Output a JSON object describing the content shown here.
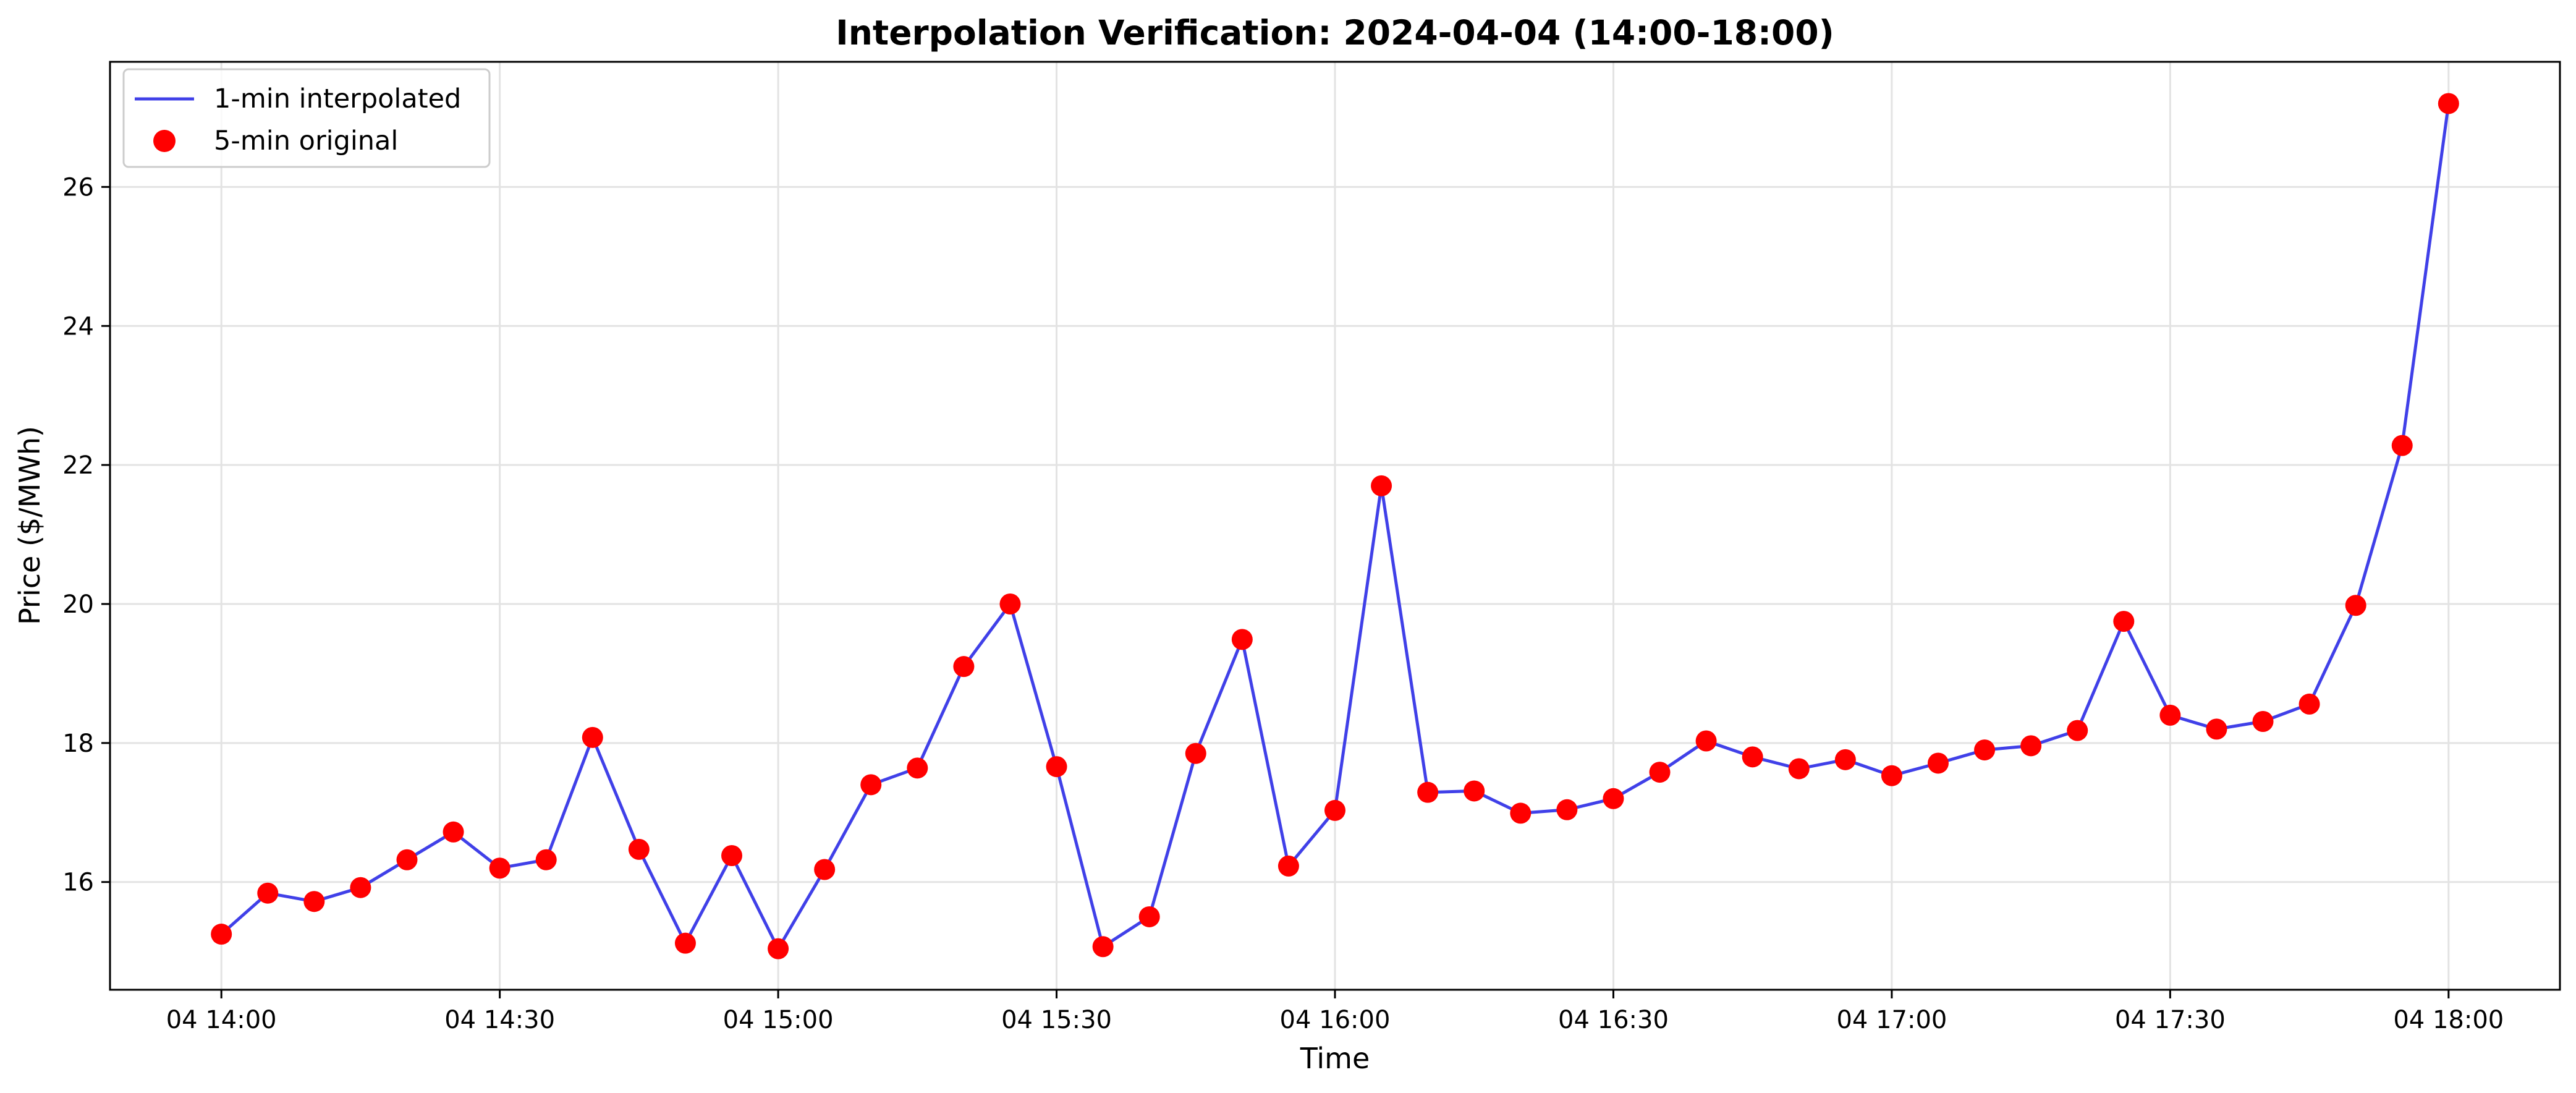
{
  "chart_data": {
    "type": "line",
    "title": "Interpolation Verification: 2024-04-04 (14:00-18:00)",
    "xlabel": "Time",
    "ylabel": "Price ($/MWh)",
    "x_ticks": [
      "04 14:00",
      "04 14:30",
      "04 15:00",
      "04 15:30",
      "04 16:00",
      "04 16:30",
      "04 17:00",
      "04 17:30",
      "04 18:00"
    ],
    "y_ticks": [
      "16",
      "18",
      "20",
      "22",
      "24",
      "26"
    ],
    "xlim": [
      "2024-04-04 13:48",
      "2024-04-04 18:12"
    ],
    "ylim": [
      14.45,
      27.8
    ],
    "grid": true,
    "legend_position": "top-left",
    "x": [
      "14:00",
      "14:05",
      "14:10",
      "14:15",
      "14:20",
      "14:25",
      "14:30",
      "14:35",
      "14:40",
      "14:45",
      "14:50",
      "14:55",
      "15:00",
      "15:05",
      "15:10",
      "15:15",
      "15:20",
      "15:25",
      "15:30",
      "15:35",
      "15:40",
      "15:45",
      "15:50",
      "15:55",
      "16:00",
      "16:05",
      "16:10",
      "16:15",
      "16:20",
      "16:25",
      "16:30",
      "16:35",
      "16:40",
      "16:45",
      "16:50",
      "16:55",
      "17:00",
      "17:05",
      "17:10",
      "17:15",
      "17:20",
      "17:25",
      "17:30",
      "17:35",
      "17:40",
      "17:45",
      "17:50",
      "17:55",
      "18:00"
    ],
    "series": [
      {
        "name": "1-min interpolated",
        "style": "line",
        "color": "#4040e8",
        "values": [
          15.25,
          15.84,
          15.72,
          15.92,
          16.32,
          16.72,
          16.2,
          16.32,
          18.08,
          16.47,
          15.12,
          16.38,
          15.04,
          16.18,
          17.4,
          17.64,
          19.1,
          20.0,
          17.66,
          15.07,
          15.5,
          17.85,
          19.49,
          16.23,
          17.03,
          21.7,
          17.29,
          17.31,
          16.99,
          17.04,
          17.2,
          17.58,
          18.03,
          17.8,
          17.63,
          17.76,
          17.53,
          17.71,
          17.9,
          17.96,
          18.18,
          19.75,
          18.4,
          18.2,
          18.31,
          18.56,
          19.98,
          22.28,
          27.2
        ]
      },
      {
        "name": "5-min original",
        "style": "markers",
        "color": "#ff0000",
        "values": [
          15.25,
          15.84,
          15.72,
          15.92,
          16.32,
          16.72,
          16.2,
          16.32,
          18.08,
          16.47,
          15.12,
          16.38,
          15.04,
          16.18,
          17.4,
          17.64,
          19.1,
          20.0,
          17.66,
          15.07,
          15.5,
          17.85,
          19.49,
          16.23,
          17.03,
          21.7,
          17.29,
          17.31,
          16.99,
          17.04,
          17.2,
          17.58,
          18.03,
          17.8,
          17.63,
          17.76,
          17.53,
          17.71,
          17.9,
          17.96,
          18.18,
          19.75,
          18.4,
          18.2,
          18.31,
          18.56,
          19.98,
          22.28,
          27.2
        ]
      }
    ]
  }
}
